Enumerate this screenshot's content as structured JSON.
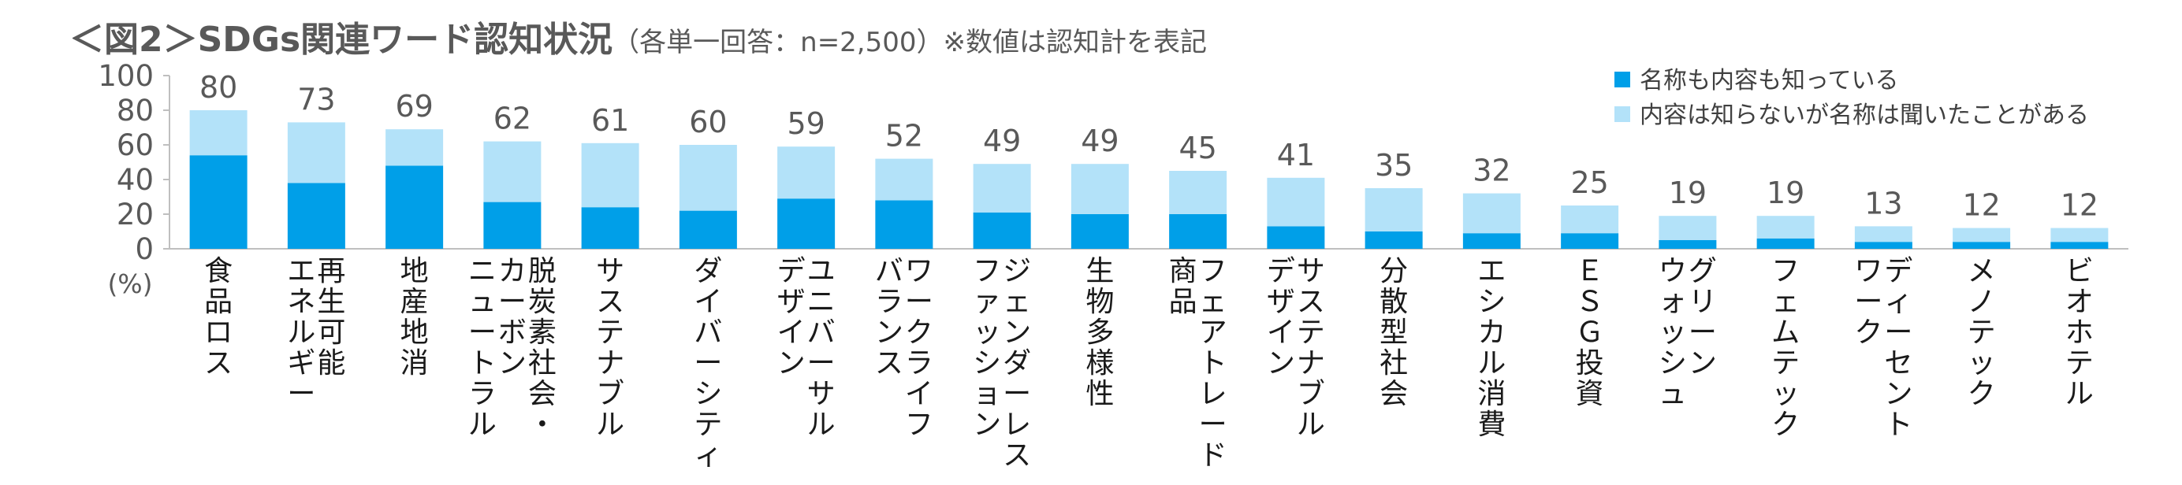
{
  "title": "＜図2＞SDGs関連ワード認知状況",
  "subtitle": "（各単一回答：n=2,500）※数値は認知計を表記",
  "colors": {
    "known": "#009fe8",
    "heard": "#b3e2f9",
    "axis": "#bfbfbf",
    "text": "#595959"
  },
  "chart_data": {
    "type": "bar",
    "stacked": true,
    "title": "＜図2＞SDGs関連ワード認知状況",
    "subtitle": "（各単一回答：n=2,500）※数値は認知計を表記",
    "y_unit": "(%)",
    "ylim": [
      0,
      100
    ],
    "yticks": [
      0,
      20,
      40,
      60,
      80,
      100
    ],
    "grid": false,
    "legend_position": "top-right",
    "categories": [
      "食品ロス",
      "再生可能エネルギー",
      "地産地消",
      "脱炭素社会・カーボンニュートラル",
      "サステナブル",
      "ダイバーシティ",
      "ユニバーサルデザイン",
      "ワークライフバランス",
      "ジェンダーレスファッション",
      "生物多様性",
      "フェアトレード商品",
      "サステナブルデザイン",
      "分散型社会",
      "エシカル消費",
      "ＥＳＧ投資",
      "グリーンウォッシュ",
      "フェムテック",
      "ディーセントワーク",
      "メノテック",
      "ビオホテル"
    ],
    "category_lines": [
      [
        "食品ロス"
      ],
      [
        "再生可能",
        "エネルギー"
      ],
      [
        "地産地消"
      ],
      [
        "脱炭素社会・",
        "カーボン",
        "ニュートラル"
      ],
      [
        "サステナブル"
      ],
      [
        "ダイバーシティ"
      ],
      [
        "ユニバーサル",
        "デザイン"
      ],
      [
        "ワークライフ",
        "バランス"
      ],
      [
        "ジェンダーレス",
        "ファッション"
      ],
      [
        "生物多様性"
      ],
      [
        "フェアトレード",
        "商品"
      ],
      [
        "サステナブル",
        "デザイン"
      ],
      [
        "分散型社会"
      ],
      [
        "エシカル消費"
      ],
      [
        "ＥＳＧ投資"
      ],
      [
        "グリーン",
        "ウォッシュ"
      ],
      [
        "フェムテック"
      ],
      [
        "ディーセント",
        "ワーク"
      ],
      [
        "メノテック"
      ],
      [
        "ビオホテル"
      ]
    ],
    "series": [
      {
        "name": "名称も内容も知っている",
        "values": [
          54,
          38,
          48,
          27,
          24,
          22,
          29,
          28,
          21,
          20,
          20,
          13,
          10,
          9,
          9,
          5,
          6,
          4,
          4,
          4
        ]
      },
      {
        "name": "内容は知らないが名称は聞いたことがある",
        "values": [
          26,
          35,
          21,
          35,
          37,
          38,
          30,
          24,
          28,
          29,
          25,
          28,
          25,
          23,
          16,
          14,
          13,
          9,
          8,
          8
        ]
      }
    ],
    "totals": [
      80,
      73,
      69,
      62,
      61,
      60,
      59,
      52,
      49,
      49,
      45,
      41,
      35,
      32,
      25,
      19,
      19,
      13,
      12,
      12
    ]
  }
}
